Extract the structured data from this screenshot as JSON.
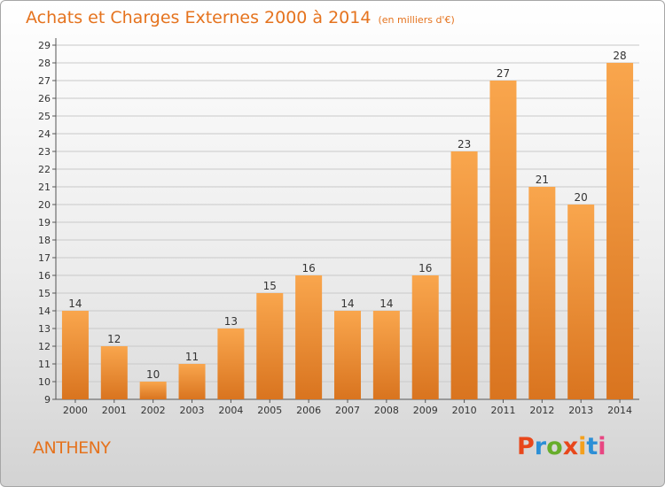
{
  "header": {
    "title": "Achats et Charges Externes 2000 à 2014",
    "subtitle": "(en milliers d'€)"
  },
  "footer": {
    "commune": "ANTHENY",
    "logo_text": "Proxiti"
  },
  "colors": {
    "title": "#e5731e",
    "bar_top": "#f9a64d",
    "bar_bottom": "#d9741f",
    "grid": "#c9c9c9",
    "logo_letters": [
      "#e8471b",
      "#2c8fd6",
      "#67ad2b",
      "#e8471b",
      "#f4a01c",
      "#2c8fd6",
      "#e84682"
    ]
  },
  "chart_data": {
    "type": "bar",
    "title": "Achats et Charges Externes 2000 à 2014",
    "subtitle": "(en milliers d'€)",
    "categories": [
      "2000",
      "2001",
      "2002",
      "2003",
      "2004",
      "2005",
      "2006",
      "2007",
      "2008",
      "2009",
      "2010",
      "2011",
      "2012",
      "2013",
      "2014"
    ],
    "values": [
      14,
      12,
      10,
      11,
      13,
      15,
      16,
      14,
      14,
      16,
      23,
      27,
      21,
      20,
      28
    ],
    "ylim": [
      9,
      29
    ],
    "yticks": [
      9,
      10,
      11,
      12,
      13,
      14,
      15,
      16,
      17,
      18,
      19,
      20,
      21,
      22,
      23,
      24,
      25,
      26,
      27,
      28,
      29
    ],
    "grid": true,
    "xlabel": "",
    "ylabel": ""
  }
}
